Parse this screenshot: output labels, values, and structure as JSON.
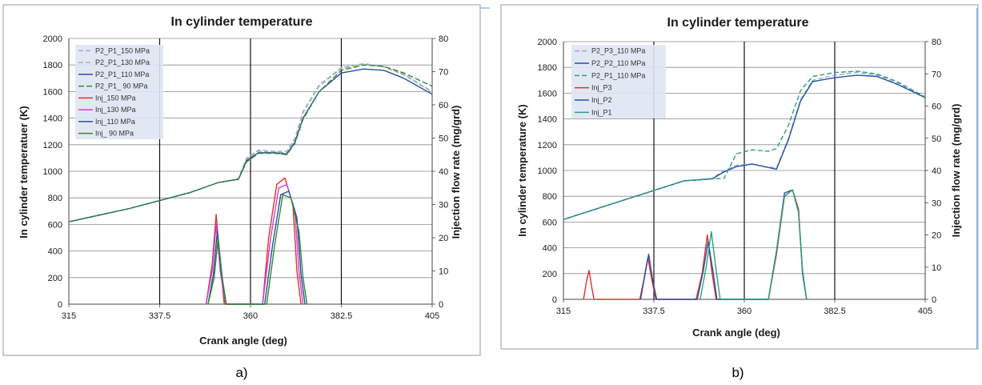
{
  "subfigure_labels": [
    "a)",
    "b)"
  ],
  "chart_data": [
    {
      "type": "line",
      "title": "In cylinder temperature",
      "xlabel": "Crank angle (deg)",
      "ylabel": "In cylinder temperatuer (K)",
      "y2label": "Injection flow rate (mg/grd)",
      "xlim": [
        315,
        405
      ],
      "ylim": [
        0,
        2000
      ],
      "y2lim": [
        0,
        80
      ],
      "x_ticks": [
        "315",
        "337.5",
        "360",
        "382.5",
        "405"
      ],
      "y_ticks": [
        "0",
        "200",
        "400",
        "600",
        "800",
        "1000",
        "1200",
        "1400",
        "1600",
        "1800",
        "2000"
      ],
      "y2_ticks": [
        "0",
        "10",
        "20",
        "30",
        "40",
        "50",
        "60",
        "70",
        "80"
      ],
      "vlines": [
        337.5,
        360,
        382.5
      ],
      "grid": "horizontal",
      "legend_position": "top-left",
      "series": [
        {
          "name": "P2_P1_150 MPa",
          "axis": "left",
          "color": "#8faed8",
          "dash": "6,3",
          "points": [
            [
              315,
              620
            ],
            [
              330,
              720
            ],
            [
              345,
              840
            ],
            [
              352,
              915
            ],
            [
              355,
              930
            ],
            [
              357,
              945
            ],
            [
              359,
              1100
            ],
            [
              362,
              1160
            ],
            [
              366,
              1150
            ],
            [
              369,
              1150
            ],
            [
              371,
              1250
            ],
            [
              373,
              1450
            ],
            [
              377,
              1650
            ],
            [
              382.5,
              1780
            ],
            [
              388,
              1810
            ],
            [
              393,
              1790
            ],
            [
              398,
              1730
            ],
            [
              405,
              1600
            ]
          ]
        },
        {
          "name": "P2_P1_130 MPa",
          "axis": "left",
          "color": "#b0b0b0",
          "dash": "6,3",
          "points": [
            [
              315,
              620
            ],
            [
              330,
              720
            ],
            [
              345,
              840
            ],
            [
              352,
              915
            ],
            [
              355,
              930
            ],
            [
              357,
              945
            ],
            [
              359,
              1090
            ],
            [
              362,
              1150
            ],
            [
              366,
              1145
            ],
            [
              369,
              1140
            ],
            [
              371,
              1240
            ],
            [
              373,
              1440
            ],
            [
              377,
              1640
            ],
            [
              382.5,
              1775
            ],
            [
              388,
              1805
            ],
            [
              393,
              1785
            ],
            [
              398,
              1725
            ],
            [
              405,
              1595
            ]
          ]
        },
        {
          "name": "P2_P1_110 MPa",
          "axis": "left",
          "color": "#2a4fa0",
          "dash": "",
          "points": [
            [
              315,
              620
            ],
            [
              330,
              720
            ],
            [
              345,
              840
            ],
            [
              352,
              915
            ],
            [
              355,
              930
            ],
            [
              357,
              940
            ],
            [
              359,
              1080
            ],
            [
              362,
              1140
            ],
            [
              366,
              1140
            ],
            [
              369,
              1130
            ],
            [
              371,
              1220
            ],
            [
              373,
              1400
            ],
            [
              377,
              1600
            ],
            [
              382.5,
              1740
            ],
            [
              388,
              1770
            ],
            [
              393,
              1760
            ],
            [
              398,
              1700
            ],
            [
              405,
              1580
            ]
          ]
        },
        {
          "name": "P2_P1_ 90 MPa",
          "axis": "left",
          "color": "#2e8b2e",
          "dash": "7,3",
          "points": [
            [
              315,
              620
            ],
            [
              330,
              720
            ],
            [
              345,
              840
            ],
            [
              352,
              915
            ],
            [
              355,
              930
            ],
            [
              357,
              940
            ],
            [
              359,
              1070
            ],
            [
              362,
              1135
            ],
            [
              366,
              1135
            ],
            [
              369,
              1125
            ],
            [
              371,
              1210
            ],
            [
              373,
              1390
            ],
            [
              377,
              1600
            ],
            [
              382.5,
              1760
            ],
            [
              388,
              1800
            ],
            [
              393,
              1790
            ],
            [
              398,
              1740
            ],
            [
              405,
              1640
            ]
          ]
        },
        {
          "name": "Inj_150 MPa",
          "axis": "right",
          "color": "#e03030",
          "dash": "",
          "points": [
            [
              349,
              0
            ],
            [
              350.5,
              12
            ],
            [
              351.5,
              27
            ],
            [
              352.5,
              12
            ],
            [
              353.5,
              0
            ],
            [
              363,
              0
            ],
            [
              364.5,
              20
            ],
            [
              366.5,
              36
            ],
            [
              368.5,
              38
            ],
            [
              370.5,
              30
            ],
            [
              371.5,
              10
            ],
            [
              372.5,
              0
            ]
          ]
        },
        {
          "name": "Inj_130 MPa",
          "axis": "right",
          "color": "#d040d0",
          "dash": "",
          "points": [
            [
              349,
              0
            ],
            [
              350.5,
              10
            ],
            [
              351.5,
              24
            ],
            [
              352.5,
              10
            ],
            [
              353.8,
              0
            ],
            [
              363,
              0
            ],
            [
              365,
              20
            ],
            [
              367,
              35
            ],
            [
              369,
              36
            ],
            [
              371,
              28
            ],
            [
              372,
              10
            ],
            [
              373,
              0
            ]
          ]
        },
        {
          "name": "Inj_110 MPa",
          "axis": "right",
          "color": "#2a4fa0",
          "dash": "",
          "points": [
            [
              349.5,
              0
            ],
            [
              350.8,
              9
            ],
            [
              351.8,
              22
            ],
            [
              352.8,
              9
            ],
            [
              354,
              0
            ],
            [
              363.5,
              0
            ],
            [
              365.5,
              18
            ],
            [
              367.5,
              33
            ],
            [
              369.5,
              34
            ],
            [
              371.5,
              26
            ],
            [
              372.5,
              9
            ],
            [
              373.5,
              0
            ]
          ]
        },
        {
          "name": "Inj_ 90 MPa",
          "axis": "right",
          "color": "#2e8b2e",
          "dash": "",
          "points": [
            [
              349.5,
              0
            ],
            [
              351,
              8
            ],
            [
              352,
              20
            ],
            [
              353,
              8
            ],
            [
              354,
              0
            ],
            [
              364,
              0
            ],
            [
              366,
              18
            ],
            [
              368,
              33
            ],
            [
              370,
              32
            ],
            [
              372,
              22
            ],
            [
              373,
              8
            ],
            [
              374,
              0
            ]
          ]
        }
      ]
    },
    {
      "type": "line",
      "title": "In cylinder temperature",
      "xlabel": "Crank angle (deg)",
      "ylabel": "In cylinder temperature (K)",
      "y2label": "Injection flow rate (mg/grd)",
      "xlim": [
        315,
        405
      ],
      "ylim": [
        0,
        2000
      ],
      "y2lim": [
        0,
        80
      ],
      "x_ticks": [
        "315",
        "337.5",
        "360",
        "382.5",
        "405"
      ],
      "y_ticks": [
        "0",
        "200",
        "400",
        "600",
        "800",
        "1000",
        "1200",
        "1400",
        "1600",
        "1800",
        "2000"
      ],
      "y2_ticks": [
        "0",
        "10",
        "20",
        "30",
        "40",
        "50",
        "60",
        "70",
        "80"
      ],
      "vlines": [
        337.5,
        360,
        382.5
      ],
      "grid": "horizontal",
      "legend_position": "top-left",
      "series": [
        {
          "name": "P2_P3_110 MPa",
          "axis": "left",
          "color": "#8faed8",
          "dash": "6,3",
          "points": [
            [
              315,
              620
            ],
            [
              330,
              770
            ],
            [
              345,
              920
            ],
            [
              352,
              940
            ],
            [
              355,
              1000
            ],
            [
              358,
              1040
            ],
            [
              362,
              1050
            ],
            [
              365,
              1030
            ],
            [
              368,
              1020
            ],
            [
              371,
              1250
            ],
            [
              374,
              1550
            ],
            [
              377,
              1700
            ],
            [
              382.5,
              1740
            ],
            [
              388,
              1760
            ],
            [
              393,
              1740
            ],
            [
              398,
              1680
            ],
            [
              405,
              1570
            ]
          ]
        },
        {
          "name": "P2_P2_110 MPa",
          "axis": "left",
          "color": "#2a4fa0",
          "dash": "",
          "points": [
            [
              315,
              620
            ],
            [
              330,
              770
            ],
            [
              345,
              920
            ],
            [
              352,
              935
            ],
            [
              355,
              990
            ],
            [
              358,
              1030
            ],
            [
              362,
              1050
            ],
            [
              365,
              1030
            ],
            [
              368,
              1010
            ],
            [
              371,
              1240
            ],
            [
              374,
              1540
            ],
            [
              377,
              1690
            ],
            [
              382.5,
              1720
            ],
            [
              388,
              1740
            ],
            [
              393,
              1730
            ],
            [
              398,
              1670
            ],
            [
              405,
              1565
            ]
          ]
        },
        {
          "name": "P2_P1_110 MPa",
          "axis": "left",
          "color": "#2aa07a",
          "dash": "6,3",
          "points": [
            [
              315,
              620
            ],
            [
              330,
              770
            ],
            [
              345,
              920
            ],
            [
              352,
              935
            ],
            [
              355,
              940
            ],
            [
              358,
              1130
            ],
            [
              362,
              1160
            ],
            [
              366,
              1150
            ],
            [
              368,
              1170
            ],
            [
              371,
              1350
            ],
            [
              374,
              1620
            ],
            [
              377,
              1730
            ],
            [
              382.5,
              1760
            ],
            [
              388,
              1770
            ],
            [
              393,
              1750
            ],
            [
              398,
              1690
            ],
            [
              405,
              1570
            ]
          ]
        },
        {
          "name": "Inj_P3",
          "axis": "right",
          "color": "#e03030",
          "dash": "",
          "points": [
            [
              320,
              0
            ],
            [
              320.8,
              6
            ],
            [
              321.4,
              9
            ],
            [
              322,
              4
            ],
            [
              322.6,
              0
            ],
            [
              334,
              0
            ],
            [
              335,
              6
            ],
            [
              336,
              13
            ],
            [
              337,
              6
            ],
            [
              338,
              0
            ],
            [
              348,
              0
            ],
            [
              349.5,
              8
            ],
            [
              350.8,
              20
            ],
            [
              352,
              8
            ],
            [
              353,
              0
            ],
            [
              366,
              0
            ],
            [
              368,
              14
            ],
            [
              370,
              32
            ],
            [
              372,
              34
            ],
            [
              373.5,
              28
            ],
            [
              374.5,
              8
            ],
            [
              375.5,
              0
            ]
          ]
        },
        {
          "name": "Inj_P2",
          "axis": "right",
          "color": "#2a4fa0",
          "dash": "",
          "points": [
            [
              334.2,
              0
            ],
            [
              335.2,
              7
            ],
            [
              336.2,
              14
            ],
            [
              337.2,
              6
            ],
            [
              338.2,
              0
            ],
            [
              348.3,
              0
            ],
            [
              349.8,
              9
            ],
            [
              351,
              18
            ],
            [
              352.3,
              8
            ],
            [
              353.2,
              0
            ],
            [
              366,
              0
            ],
            [
              368,
              15
            ],
            [
              370,
              33
            ],
            [
              372,
              34
            ],
            [
              373.5,
              27
            ],
            [
              374.5,
              8
            ],
            [
              375.5,
              0
            ]
          ]
        },
        {
          "name": "Inj_P1",
          "axis": "right",
          "color": "#2aa07a",
          "dash": "",
          "points": [
            [
              349,
              0
            ],
            [
              350.5,
              10
            ],
            [
              351.8,
              21
            ],
            [
              353,
              9
            ],
            [
              354,
              0
            ],
            [
              366,
              0
            ],
            [
              368,
              15
            ],
            [
              370,
              32
            ],
            [
              372,
              34
            ],
            [
              373.5,
              27
            ],
            [
              374.5,
              9
            ],
            [
              375.5,
              0
            ]
          ]
        }
      ]
    }
  ]
}
